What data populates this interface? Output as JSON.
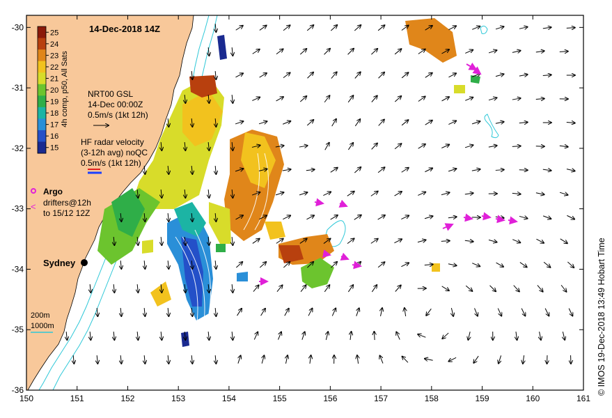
{
  "title": "14-Dec-2018 14Z",
  "colorbar": {
    "label": "4h comp, p50, All Sats",
    "ticks": [
      "25",
      "24",
      "23",
      "22",
      "21",
      "20",
      "19",
      "18",
      "17",
      "16",
      "15"
    ],
    "colors": [
      "#8b1a0a",
      "#b8400e",
      "#e0861a",
      "#f2c21e",
      "#d8dc2a",
      "#6cc42e",
      "#2fae48",
      "#1cb4a4",
      "#2a8fd8",
      "#2450c8",
      "#1a2a90"
    ]
  },
  "gsl": {
    "line1": "NRT00 GSL",
    "line2": "14-Dec 00:00Z",
    "line3": "0.5m/s (1kt 12h)"
  },
  "hf": {
    "line1": "HF radar velocity",
    "line2": "(3-12h avg) noQC",
    "line3": "0.5m/s (1kt 12h)"
  },
  "argo": {
    "label": "Argo",
    "drifters1": "drifters@12h",
    "drifters2": "to 15/12 12Z"
  },
  "city": "Sydney",
  "isobaths": {
    "l1": "200m",
    "l2": "1000m"
  },
  "axes": {
    "x_ticks": [
      "150",
      "151",
      "152",
      "153",
      "154",
      "155",
      "156",
      "157",
      "158",
      "159",
      "160",
      "161"
    ],
    "y_ticks": [
      "-30",
      "-31",
      "-32",
      "-33",
      "-34",
      "-35",
      "-36"
    ],
    "xlim": [
      150,
      161
    ],
    "ylim": [
      -36,
      -29.8
    ]
  },
  "credit": "©  IMOS 19-Dec-2018 13:49 Hobart Time",
  "colors": {
    "land": "#f8c89a",
    "isobath": "#2ec8d8",
    "drifter": "#e020d8"
  }
}
